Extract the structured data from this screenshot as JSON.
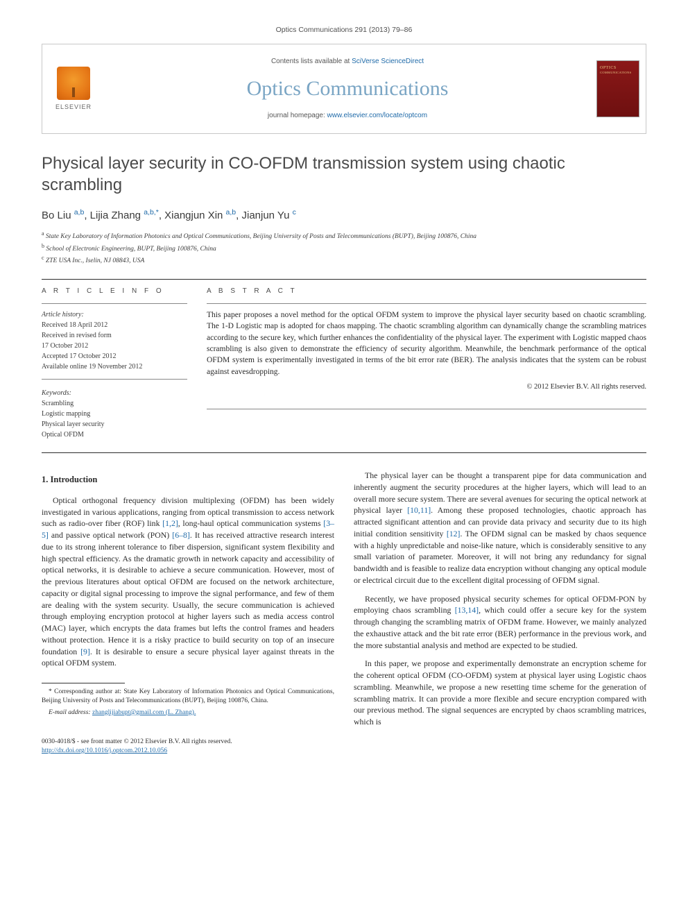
{
  "header": {
    "journal_ref": "Optics Communications 291 (2013) 79–86",
    "contents_prefix": "Contents lists available at ",
    "contents_link": "SciVerse ScienceDirect",
    "journal_name": "Optics Communications",
    "homepage_prefix": "journal homepage: ",
    "homepage_url": "www.elsevier.com/locate/optcom",
    "elsevier_label": "ELSEVIER"
  },
  "article": {
    "title": "Physical layer security in CO-OFDM transmission system using chaotic scrambling",
    "authors_html": "Bo Liu <span class='aff'>a,b</span>, Lijia Zhang <span class='aff'>a,b,*</span>, Xiangjun Xin <span class='aff'>a,b</span>, Jianjun Yu <span class='aff'>c</span>",
    "affiliations": [
      {
        "sup": "a",
        "text": "State Key Laboratory of Information Photonics and Optical Communications, Beijing University of Posts and Telecommunications (BUPT), Beijing 100876, China"
      },
      {
        "sup": "b",
        "text": "School of Electronic Engineering, BUPT, Beijing 100876, China"
      },
      {
        "sup": "c",
        "text": "ZTE USA Inc., Iselin, NJ 08843, USA"
      }
    ]
  },
  "info": {
    "label": "A R T I C L E   I N F O",
    "history_label": "Article history:",
    "history": [
      "Received 18 April 2012",
      "Received in revised form",
      "17 October 2012",
      "Accepted 17 October 2012",
      "Available online 19 November 2012"
    ],
    "keywords_label": "Keywords:",
    "keywords": [
      "Scrambling",
      "Logistic mapping",
      "Physical layer security",
      "Optical OFDM"
    ]
  },
  "abstract": {
    "label": "A B S T R A C T",
    "text": "This paper proposes a novel method for the optical OFDM system to improve the physical layer security based on chaotic scrambling. The 1-D Logistic map is adopted for chaos mapping. The chaotic scrambling algorithm can dynamically change the scrambling matrices according to the secure key, which further enhances the confidentiality of the physical layer. The experiment with Logistic mapped chaos scrambling is also given to demonstrate the efficiency of security algorithm. Meanwhile, the benchmark performance of the optical OFDM system is experimentally investigated in terms of the bit error rate (BER). The analysis indicates that the system can be robust against eavesdropping.",
    "copyright": "© 2012 Elsevier B.V. All rights reserved."
  },
  "body": {
    "section_heading": "1.  Introduction",
    "p1": "Optical orthogonal frequency division multiplexing (OFDM) has been widely investigated in various applications, ranging from optical transmission to access network such as radio-over fiber (ROF) link [1,2], long-haul optical communication systems [3–5] and passive optical network (PON) [6–8]. It has received attractive research interest due to its strong inherent tolerance to fiber dispersion, significant system flexibility and high spectral efficiency. As the dramatic growth in network capacity and accessibility of optical networks, it is desirable to achieve a secure communication. However, most of the previous literatures about optical OFDM are focused on the network architecture, capacity or digital signal processing to improve the signal performance, and few of them are dealing with the system security. Usually, the secure communication is achieved through employing encryption protocol at higher layers such as media access control (MAC) layer, which encrypts the data frames but lefts the control frames and headers without protection. Hence it is a risky practice to build security on top of an insecure foundation [9]. It is desirable to ensure a secure physical layer against threats in the optical OFDM system.",
    "p2": "The physical layer can be thought a transparent pipe for data communication and inherently augment the security procedures at the higher layers, which will lead to an overall more secure system. There are several avenues for securing the optical network at physical layer [10,11]. Among these proposed technologies, chaotic approach has attracted significant attention and can provide data privacy and security due to its high initial condition sensitivity [12]. The OFDM signal can be masked by chaos sequence with a highly unpredictable and noise-like nature, which is considerably sensitive to any small variation of parameter. Moreover, it will not bring any redundancy for signal bandwidth and is feasible to realize data encryption without changing any optical module or electrical circuit due to the excellent digital processing of OFDM signal.",
    "p3": "Recently, we have proposed physical security schemes for optical OFDM-PON by employing chaos scrambling [13,14], which could offer a secure key for the system through changing the scrambling matrix of OFDM frame. However, we mainly analyzed the exhaustive attack and the bit rate error (BER) performance in the previous work, and the more substantial analysis and method are expected to be studied.",
    "p4": "In this paper, we propose and experimentally demonstrate an encryption scheme for the coherent optical OFDM (CO-OFDM) system at physical layer using Logistic chaos scrambling. Meanwhile, we propose a new resetting time scheme for the generation of scrambling matrix. It can provide a more flexible and secure encryption compared with our previous method. The signal sequences are encrypted by chaos scrambling matrices, which is"
  },
  "footnotes": {
    "corr": "* Corresponding author at: State Key Laboratory of Information Photonics and Optical Communications, Beijing University of Posts and Telecommunications (BUPT), Beijing 100876, China.",
    "email_label": "E-mail address: ",
    "email": "zhanglijiabupt@gmail.com (L. Zhang)."
  },
  "footer": {
    "line1": "0030-4018/$ - see front matter © 2012 Elsevier B.V. All rights reserved.",
    "line2": "http://dx.doi.org/10.1016/j.optcom.2012.10.056"
  },
  "colors": {
    "link": "#1f6aa8",
    "journal_title": "#7aa5c4",
    "text": "#2a2a2a"
  }
}
